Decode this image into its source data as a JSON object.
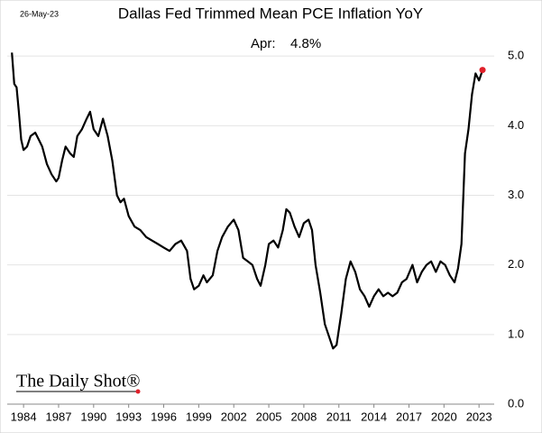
{
  "chart_data": {
    "type": "line",
    "title": "Dallas Fed Trimmed Mean PCE Inflation YoY",
    "date": "26-May-23",
    "annotation": {
      "label": "Apr:",
      "value": 4.8,
      "value_label": "4.8%"
    },
    "source": "The Daily Shot®",
    "x": [
      1983.0,
      1983.2,
      1983.4,
      1983.6,
      1983.8,
      1984.0,
      1984.3,
      1984.6,
      1985.0,
      1985.3,
      1985.6,
      1986.0,
      1986.4,
      1986.8,
      1987.0,
      1987.3,
      1987.6,
      1988.0,
      1988.3,
      1988.6,
      1989.0,
      1989.4,
      1989.7,
      1990.0,
      1990.4,
      1990.8,
      1991.2,
      1991.6,
      1992.0,
      1992.3,
      1992.6,
      1993.0,
      1993.5,
      1994.0,
      1994.5,
      1995.0,
      1995.5,
      1996.0,
      1996.5,
      1997.0,
      1997.5,
      1998.0,
      1998.3,
      1998.6,
      1999.0,
      1999.4,
      1999.7,
      2000.2,
      2000.6,
      2001.0,
      2001.5,
      2002.0,
      2002.4,
      2002.8,
      2003.2,
      2003.6,
      2004.0,
      2004.3,
      2004.7,
      2005.0,
      2005.4,
      2005.8,
      2006.2,
      2006.5,
      2006.8,
      2007.2,
      2007.6,
      2008.0,
      2008.4,
      2008.7,
      2009.0,
      2009.4,
      2009.8,
      2010.2,
      2010.5,
      2010.8,
      2011.2,
      2011.6,
      2012.0,
      2012.4,
      2012.8,
      2013.2,
      2013.6,
      2014.0,
      2014.4,
      2014.8,
      2015.2,
      2015.6,
      2016.0,
      2016.4,
      2016.8,
      2017.3,
      2017.7,
      2018.1,
      2018.5,
      2018.9,
      2019.3,
      2019.7,
      2020.1,
      2020.5,
      2020.9,
      2021.2,
      2021.5,
      2021.8,
      2022.1,
      2022.4,
      2022.7,
      2023.0,
      2023.3
    ],
    "series": [
      {
        "name": "Trimmed Mean PCE",
        "color": "#000000",
        "values": [
          5.05,
          4.6,
          4.55,
          4.2,
          3.8,
          3.65,
          3.7,
          3.85,
          3.9,
          3.8,
          3.7,
          3.45,
          3.3,
          3.2,
          3.25,
          3.5,
          3.7,
          3.6,
          3.55,
          3.85,
          3.95,
          4.1,
          4.2,
          3.95,
          3.85,
          4.1,
          3.85,
          3.5,
          3.0,
          2.9,
          2.95,
          2.7,
          2.55,
          2.5,
          2.4,
          2.35,
          2.3,
          2.25,
          2.2,
          2.3,
          2.35,
          2.2,
          1.8,
          1.65,
          1.7,
          1.85,
          1.75,
          1.85,
          2.2,
          2.4,
          2.55,
          2.65,
          2.5,
          2.1,
          2.05,
          2.0,
          1.8,
          1.7,
          2.0,
          2.3,
          2.35,
          2.25,
          2.5,
          2.8,
          2.75,
          2.55,
          2.4,
          2.6,
          2.65,
          2.5,
          2.0,
          1.6,
          1.15,
          0.95,
          0.8,
          0.85,
          1.3,
          1.8,
          2.05,
          1.9,
          1.65,
          1.55,
          1.4,
          1.55,
          1.65,
          1.55,
          1.6,
          1.55,
          1.6,
          1.75,
          1.8,
          2.0,
          1.75,
          1.9,
          2.0,
          2.05,
          1.9,
          2.05,
          2.0,
          1.85,
          1.75,
          1.95,
          2.3,
          3.6,
          3.95,
          4.45,
          4.75,
          4.65,
          4.8
        ]
      }
    ],
    "end_marker_color": "#e0202a",
    "xlim": [
      1982.6,
      2024.3
    ],
    "xticks": [
      1984,
      1987,
      1990,
      1993,
      1996,
      1999,
      2002,
      2005,
      2008,
      2011,
      2014,
      2017,
      2020,
      2023
    ],
    "ylim": [
      0,
      5.3
    ],
    "yticks": [
      {
        "value": 0,
        "label": "0.0"
      },
      {
        "value": 1,
        "label": "1.0"
      },
      {
        "value": 2,
        "label": "2.0"
      },
      {
        "value": 3,
        "label": "3.0"
      },
      {
        "value": 4,
        "label": "4.0"
      },
      {
        "value": 5,
        "label": "5.0"
      }
    ],
    "grid": true
  }
}
